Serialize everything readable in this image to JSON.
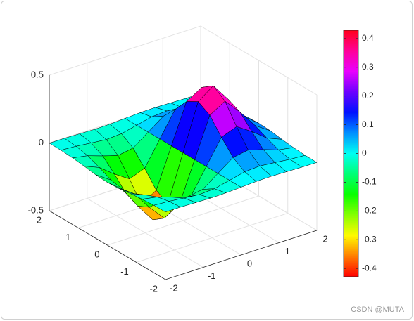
{
  "chart_data": {
    "type": "surface",
    "x": [
      -2,
      -1.6,
      -1.2,
      -0.8,
      -0.4,
      0,
      0.4,
      0.8,
      1.2,
      1.6,
      2
    ],
    "y": [
      -2,
      -1.6,
      -1.2,
      -0.8,
      -0.4,
      0,
      0.4,
      0.8,
      1.2,
      1.6,
      2
    ],
    "z": [
      [
        -0.001,
        -0.002,
        -0.005,
        -0.008,
        -0.006,
        0,
        0.006,
        0.008,
        0.005,
        0.002,
        0.001
      ],
      [
        -0.003,
        -0.01,
        -0.022,
        -0.033,
        -0.026,
        0,
        0.026,
        0.033,
        0.022,
        0.01,
        0.003
      ],
      [
        -0.009,
        -0.029,
        -0.067,
        -0.1,
        -0.081,
        0,
        0.081,
        0.1,
        0.067,
        0.029,
        0.009
      ],
      [
        -0.019,
        -0.065,
        -0.15,
        -0.222,
        -0.18,
        0,
        0.18,
        0.222,
        0.15,
        0.065,
        0.019
      ],
      [
        -0.032,
        -0.106,
        -0.242,
        -0.359,
        -0.291,
        0,
        0.291,
        0.359,
        0.242,
        0.106,
        0.032
      ],
      [
        -0.037,
        -0.124,
        -0.284,
        -0.422,
        -0.341,
        0,
        0.341,
        0.422,
        0.284,
        0.124,
        0.037
      ],
      [
        -0.032,
        -0.106,
        -0.242,
        -0.359,
        -0.291,
        0,
        0.291,
        0.359,
        0.242,
        0.106,
        0.032
      ],
      [
        -0.019,
        -0.065,
        -0.15,
        -0.222,
        -0.18,
        0,
        0.18,
        0.222,
        0.15,
        0.065,
        0.019
      ],
      [
        -0.009,
        -0.029,
        -0.067,
        -0.1,
        -0.081,
        0,
        0.081,
        0.1,
        0.067,
        0.029,
        0.009
      ],
      [
        -0.003,
        -0.01,
        -0.022,
        -0.033,
        -0.026,
        0,
        0.026,
        0.033,
        0.022,
        0.01,
        0.003
      ],
      [
        -0.001,
        -0.002,
        -0.005,
        -0.008,
        -0.006,
        0,
        0.006,
        0.008,
        0.005,
        0.002,
        0.001
      ]
    ],
    "xlim": [
      -2,
      2
    ],
    "ylim": [
      -2,
      2
    ],
    "zlim": [
      -0.5,
      0.5
    ],
    "xticks": [
      -2,
      -1,
      0,
      1,
      2
    ],
    "yticks": [
      -2,
      -1,
      0,
      1,
      2
    ],
    "zticks": [
      -0.5,
      0,
      0.5
    ],
    "grid": true,
    "colormap": "hsv",
    "colorbar": {
      "clim": [
        -0.4289,
        0.4289
      ],
      "ticks": [
        -0.4,
        -0.3,
        -0.2,
        -0.1,
        0,
        0.1,
        0.2,
        0.3,
        0.4
      ]
    },
    "watermark": "CSDN @MUTA"
  }
}
